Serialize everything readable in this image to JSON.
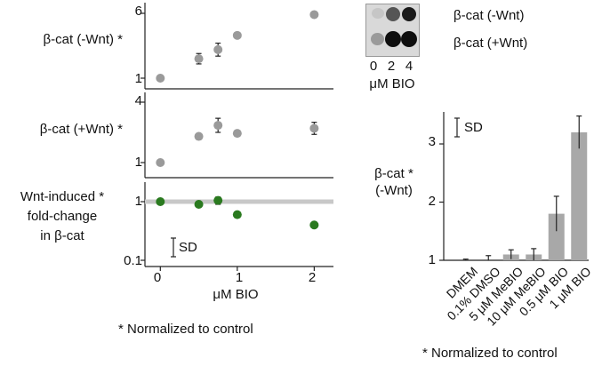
{
  "left_chart": {
    "panels": [
      {
        "label_line1": "β-cat (-Wnt) *",
        "label_line2": "",
        "label_line3": "",
        "yticks": [
          "6",
          "1"
        ],
        "ylim": [
          1,
          6
        ],
        "points": [
          {
            "x": 0,
            "y": 1,
            "err": 0
          },
          {
            "x": 0.5,
            "y": 2.5,
            "err": 0.4
          },
          {
            "x": 0.75,
            "y": 3.2,
            "err": 0.5
          },
          {
            "x": 1,
            "y": 4.3,
            "err": 0
          },
          {
            "x": 2,
            "y": 5.9,
            "err": 0
          }
        ],
        "color": "#9a9a9a"
      },
      {
        "label_line1": "β-cat (+Wnt) *",
        "label_line2": "",
        "label_line3": "",
        "yticks": [
          "4",
          "1"
        ],
        "ylim": [
          1,
          4
        ],
        "points": [
          {
            "x": 0,
            "y": 1,
            "err": 0
          },
          {
            "x": 0.5,
            "y": 2.3,
            "err": 0
          },
          {
            "x": 0.75,
            "y": 2.85,
            "err": 0.35
          },
          {
            "x": 1,
            "y": 2.45,
            "err": 0
          },
          {
            "x": 2,
            "y": 2.7,
            "err": 0.3
          }
        ],
        "color": "#9a9a9a"
      },
      {
        "label_line1": "Wnt-induced *",
        "label_line2": "fold-change",
        "label_line3": "in β-cat",
        "yticks": [
          "1",
          "0.1"
        ],
        "ylim": [
          0.1,
          1.5
        ],
        "scale": "log",
        "reference_line": 1,
        "points": [
          {
            "x": 0,
            "y": 1,
            "err": 0
          },
          {
            "x": 0.5,
            "y": 0.9,
            "err": 0
          },
          {
            "x": 0.75,
            "y": 1.05,
            "err": 0.15
          },
          {
            "x": 1,
            "y": 0.6,
            "err": 0.05
          },
          {
            "x": 2,
            "y": 0.4,
            "err": 0
          }
        ],
        "color": "#2a7a1f"
      }
    ],
    "sd_label": "SD",
    "xticks": [
      "0",
      "1",
      "2"
    ],
    "xlim": [
      -0.2,
      2.25
    ],
    "xlabel": "μM BIO",
    "footnote": "* Normalized to control"
  },
  "blot": {
    "labels": [
      "β-cat (-Wnt)",
      "β-cat (+Wnt)"
    ],
    "lanes": [
      "0",
      "2",
      "4"
    ],
    "xlabel": "μM BIO"
  },
  "chart_data": {
    "type": "bar",
    "ylabel_line1": "β-cat *",
    "ylabel_line2": "(-Wnt)",
    "categories": [
      "DMEM",
      "0.1% DMSO",
      "5 μM MeBIO",
      "10 μM MeBIO",
      "0.5 μM BIO",
      "1 μM BIO"
    ],
    "values": [
      1.0,
      1.0,
      1.1,
      1.1,
      1.8,
      3.2
    ],
    "errors": [
      0.02,
      0.08,
      0.08,
      0.1,
      0.3,
      0.28
    ],
    "yticks": [
      "1",
      "2",
      "3"
    ],
    "ylim": [
      1,
      3.55
    ],
    "bar_color": "#a8a8a8",
    "sd_label": "SD",
    "footnote": "* Normalized to control"
  }
}
